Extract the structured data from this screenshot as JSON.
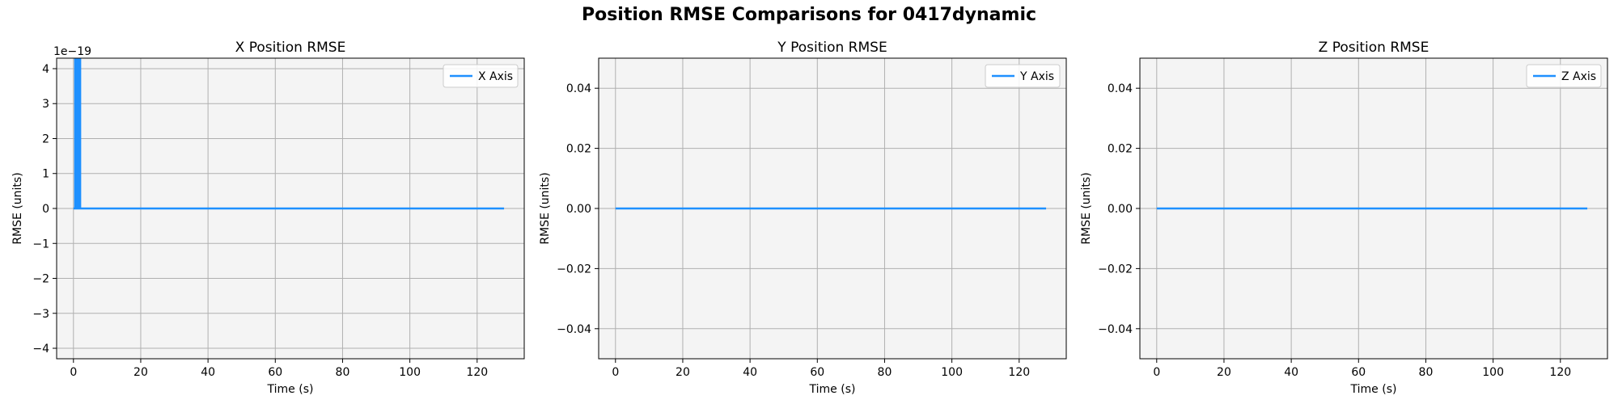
{
  "figure": {
    "suptitle": "Position RMSE Comparisons for 0417dynamic",
    "plot_background": "#f4f4f4",
    "line_color": "#1e90ff",
    "grid_color": "#b0b0b0"
  },
  "chart_data": [
    {
      "type": "line",
      "title": "X Position RMSE",
      "xlabel": "Time (s)",
      "ylabel": "RMSE (units)",
      "xlim": [
        -5,
        134
      ],
      "ylim": [
        -4.3,
        4.3
      ],
      "x_ticks": [
        0,
        20,
        40,
        60,
        80,
        100,
        120
      ],
      "y_ticks": [
        -4,
        -3,
        -2,
        -1,
        0,
        1,
        2,
        3,
        4
      ],
      "y_offset_label": "1e−19",
      "grid": true,
      "legend_position": "upper-right",
      "series": [
        {
          "name": "X Axis",
          "burst": {
            "x_start": 0.2,
            "x_end": 2.3,
            "low": 0,
            "high": 4.3
          },
          "x": [
            0,
            128
          ],
          "y": [
            0,
            0
          ]
        }
      ]
    },
    {
      "type": "line",
      "title": "Y Position RMSE",
      "xlabel": "Time (s)",
      "ylabel": "RMSE (units)",
      "xlim": [
        -5,
        134
      ],
      "ylim": [
        -0.05,
        0.05
      ],
      "x_ticks": [
        0,
        20,
        40,
        60,
        80,
        100,
        120
      ],
      "y_ticks": [
        -0.04,
        -0.02,
        0.0,
        0.02,
        0.04
      ],
      "y_tick_labels": [
        "−0.04",
        "−0.02",
        "0.00",
        "0.02",
        "0.04"
      ],
      "grid": true,
      "legend_position": "upper-right",
      "series": [
        {
          "name": "Y Axis",
          "x": [
            0,
            128
          ],
          "y": [
            0,
            0
          ]
        }
      ]
    },
    {
      "type": "line",
      "title": "Z Position RMSE",
      "xlabel": "Time (s)",
      "ylabel": "RMSE (units)",
      "xlim": [
        -5,
        134
      ],
      "ylim": [
        -0.05,
        0.05
      ],
      "x_ticks": [
        0,
        20,
        40,
        60,
        80,
        100,
        120
      ],
      "y_ticks": [
        -0.04,
        -0.02,
        0.0,
        0.02,
        0.04
      ],
      "y_tick_labels": [
        "−0.04",
        "−0.02",
        "0.00",
        "0.02",
        "0.04"
      ],
      "grid": true,
      "legend_position": "upper-right",
      "series": [
        {
          "name": "Z Axis",
          "x": [
            0,
            128
          ],
          "y": [
            0,
            0
          ]
        }
      ]
    }
  ]
}
